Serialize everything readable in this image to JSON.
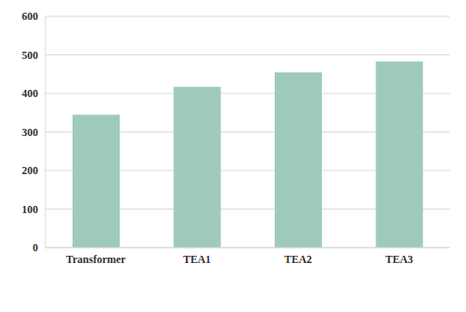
{
  "chart_data": {
    "type": "bar",
    "categories": [
      "Transformer",
      "TEA1",
      "TEA2",
      "TEA3"
    ],
    "values": [
      345,
      417,
      455,
      483
    ],
    "color": "#9ecbb9",
    "ylim": [
      0,
      600
    ],
    "yticks": [
      0,
      100,
      200,
      300,
      400,
      500,
      600
    ],
    "grid": true
  }
}
